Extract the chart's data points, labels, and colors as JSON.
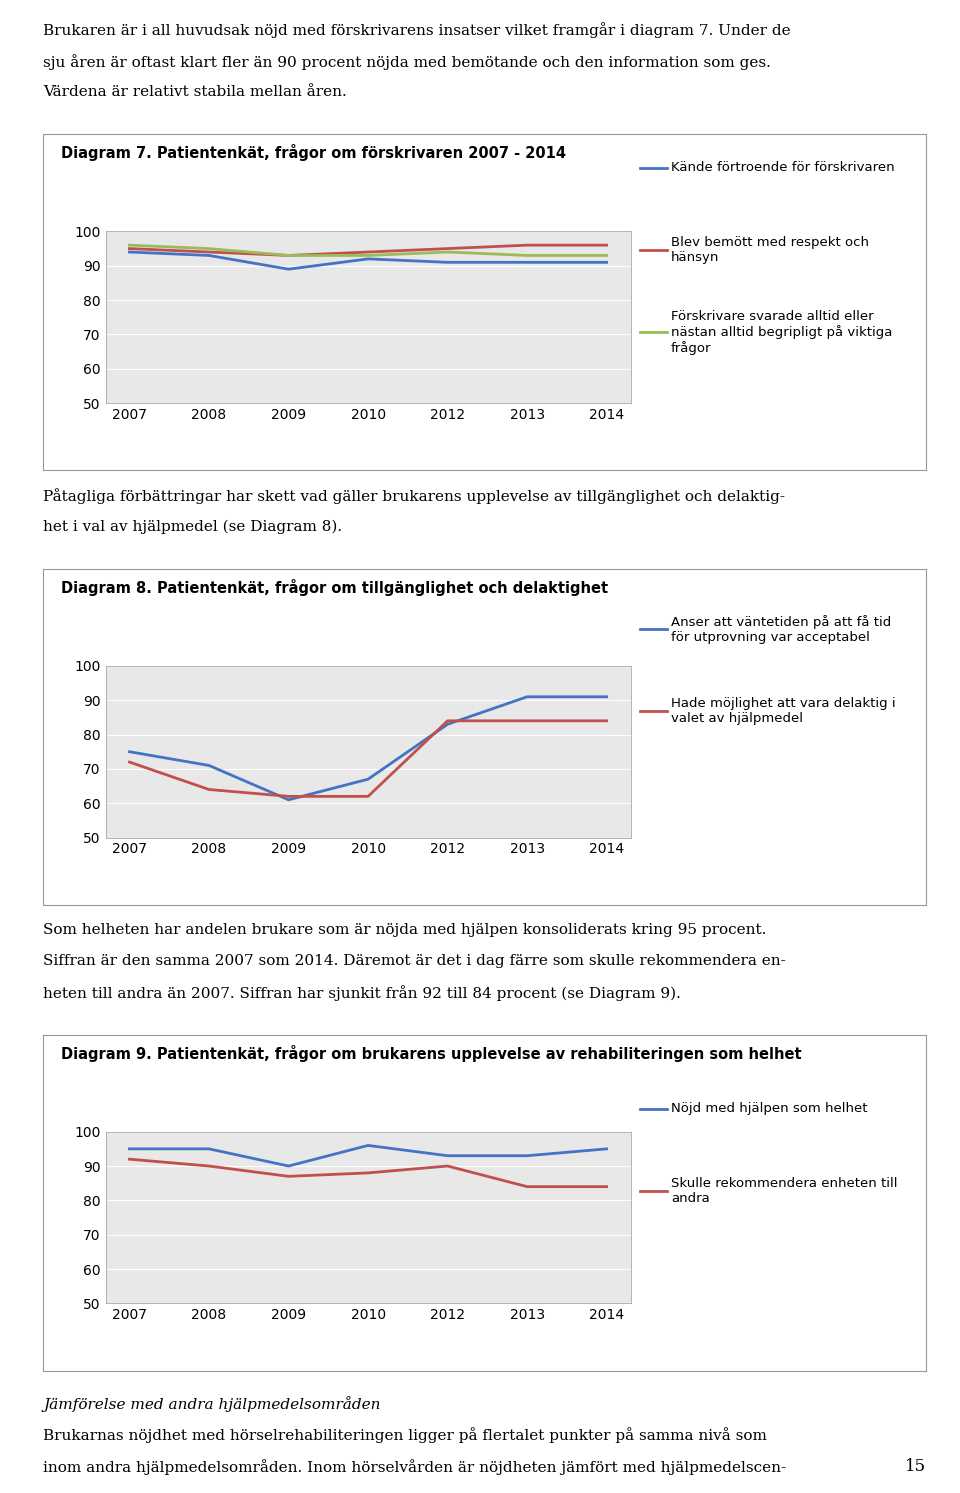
{
  "page_number": "15",
  "text1_lines": [
    "Brukaren är i all huvudsak nöjd med förskrivarens insatser vilket framgår i diagram 7. Under de",
    "sju åren är oftast klart fler än 90 procent nöjda med bemötande och den information som ges.",
    "Värdena är relativt stabila mellan åren."
  ],
  "text2_lines": [
    "Påtagliga förbättringar har skett vad gäller brukarens upplevelse av tillgänglighet och delaktig-",
    "het i val av hjälpmedel (se Diagram 8)."
  ],
  "text3_lines": [
    "Som helheten har andelen brukare som är nöjda med hjälpen konsoliderats kring 95 procent.",
    "Siffran är den samma 2007 som 2014. Däremot är det i dag färre som skulle rekommendera en-",
    "heten till andra än 2007. Siffran har sjunkit från 92 till 84 procent (se Diagram 9)."
  ],
  "italic_text": "Jämförelse med andra hjälpmedelsområden",
  "bottom_lines": [
    "Brukarnas nöjdhet med hörselrehabiliteringen ligger på flertalet punkter på samma nivå som",
    "inom andra hjälpmedelsområden. Inom hörselvården är nöjdheten jämfört med hjälpmedelscen-"
  ],
  "diagram7": {
    "title": "Diagram 7. Patientenkät, frågor om förskrivaren 2007 - 2014",
    "years": [
      2007,
      2008,
      2009,
      2010,
      2012,
      2013,
      2014
    ],
    "series": [
      {
        "label": "Kände förtroende för förskrivaren",
        "color": "#4472C4",
        "values": [
          94,
          93,
          89,
          92,
          91,
          91,
          91
        ]
      },
      {
        "label": "Blev bemött med respekt och\nhänsyn",
        "color": "#C0504D",
        "values": [
          95,
          94,
          93,
          94,
          95,
          96,
          96
        ]
      },
      {
        "label": "Förskrivare svarade alltid eller\nnästan alltid begripligt på viktiga\nfrågor",
        "color": "#9BBB59",
        "values": [
          96,
          95,
          93,
          93,
          94,
          93,
          93
        ]
      }
    ],
    "ylim": [
      50,
      100
    ],
    "yticks": [
      50,
      60,
      70,
      80,
      90,
      100
    ]
  },
  "diagram8": {
    "title": "Diagram 8. Patientenkät, frågor om tillgänglighet och delaktighet",
    "years": [
      2007,
      2008,
      2009,
      2010,
      2012,
      2013,
      2014
    ],
    "series": [
      {
        "label": "Anser att väntetiden på att få tid\nför utprovning var acceptabel",
        "color": "#4472C4",
        "values": [
          75,
          71,
          61,
          67,
          83,
          91,
          91
        ]
      },
      {
        "label": "Hade möjlighet att vara delaktig i\nvalet av hjälpmedel",
        "color": "#C0504D",
        "values": [
          72,
          64,
          62,
          62,
          84,
          84,
          84
        ]
      }
    ],
    "ylim": [
      50,
      100
    ],
    "yticks": [
      50,
      60,
      70,
      80,
      90,
      100
    ]
  },
  "diagram9": {
    "title": "Diagram 9. Patientenkät, frågor om brukarens upplevelse av rehabiliteringen som helhet",
    "years": [
      2007,
      2008,
      2009,
      2010,
      2012,
      2013,
      2014
    ],
    "series": [
      {
        "label": "Nöjd med hjälpen som helhet",
        "color": "#4472C4",
        "values": [
          95,
          95,
          90,
          96,
          93,
          93,
          95
        ]
      },
      {
        "label": "Skulle rekommendera enheten till\nandra",
        "color": "#C0504D",
        "values": [
          92,
          90,
          87,
          88,
          90,
          84,
          84
        ]
      }
    ],
    "ylim": [
      50,
      100
    ],
    "yticks": [
      50,
      60,
      70,
      80,
      90,
      100
    ]
  },
  "bg_color": "#E8E8E8",
  "text_fs": 11.0,
  "title_fs": 10.5,
  "axis_fs": 10.0,
  "legend_fs": 9.5
}
